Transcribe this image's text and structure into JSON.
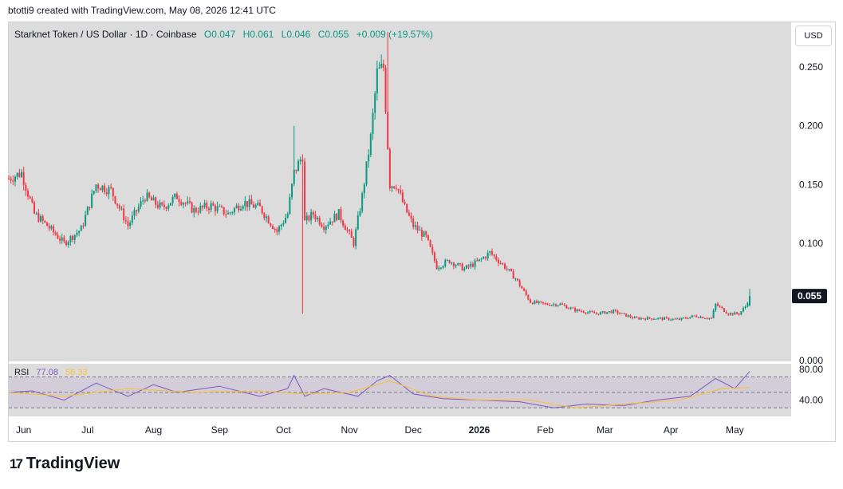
{
  "header": {
    "created": "btotti9 created with TradingView.com, May 08, 2026 12:41 UTC"
  },
  "legend": {
    "symbol": "Starknet Token / US Dollar · 1D · Coinbase",
    "open": "O0.047",
    "high": "H0.061",
    "low": "L0.046",
    "close": "C0.055",
    "change": "+0.009 (+19.57%)"
  },
  "currency": "USD",
  "rsi": {
    "name": "RSI",
    "value": "77.08",
    "ma": "56.33"
  },
  "brand": {
    "logo": "17",
    "name": "TradingView"
  },
  "colors": {
    "up": "#089981",
    "down": "#f23645",
    "rsi": "#7e57c2",
    "rsi_ma": "#fbc02d",
    "bg": "#dcdcdc",
    "rsi_band": "#d2cdd9",
    "price_tag": "#131722"
  },
  "chart_data": [
    {
      "type": "candlestick",
      "title": "Starknet Token / US Dollar · 1D · Coinbase",
      "x_ticks": [
        "Jun",
        "Jul",
        "Aug",
        "Sep",
        "Oct",
        "Nov",
        "Dec",
        "2026",
        "Feb",
        "Mar",
        "Apr",
        "May"
      ],
      "y_ticks": [
        "0.000",
        "0.100",
        "0.150",
        "0.200",
        "0.250"
      ],
      "ylim": [
        0,
        0.28
      ],
      "last_price": "0.055",
      "grid": false,
      "close_anchors": {
        "dates": [
          "2025-05-25",
          "2025-05-31",
          "2025-06-06",
          "2025-06-12",
          "2025-06-20",
          "2025-06-28",
          "2025-07-05",
          "2025-07-12",
          "2025-07-20",
          "2025-07-28",
          "2025-08-05",
          "2025-08-12",
          "2025-08-20",
          "2025-08-28",
          "2025-09-05",
          "2025-09-12",
          "2025-09-20",
          "2025-09-28",
          "2025-10-03",
          "2025-10-06",
          "2025-10-10",
          "2025-10-11",
          "2025-10-15",
          "2025-10-20",
          "2025-10-27",
          "2025-11-03",
          "2025-11-07",
          "2025-11-11",
          "2025-11-14",
          "2025-11-17",
          "2025-11-20",
          "2025-11-23",
          "2025-11-27",
          "2025-12-01",
          "2025-12-07",
          "2025-12-12",
          "2025-12-18",
          "2025-12-25",
          "2026-01-01",
          "2026-01-06",
          "2026-01-13",
          "2026-01-18",
          "2026-01-25",
          "2026-02-01",
          "2026-02-08",
          "2026-02-15",
          "2026-02-25",
          "2026-03-05",
          "2026-03-15",
          "2026-03-25",
          "2026-04-05",
          "2026-04-12",
          "2026-04-20",
          "2026-04-22",
          "2026-04-28",
          "2026-05-03",
          "2026-05-06",
          "2026-05-08"
        ],
        "close": [
          0.155,
          0.16,
          0.125,
          0.115,
          0.1,
          0.112,
          0.15,
          0.145,
          0.115,
          0.14,
          0.13,
          0.14,
          0.128,
          0.132,
          0.125,
          0.135,
          0.13,
          0.11,
          0.125,
          0.16,
          0.175,
          0.118,
          0.125,
          0.115,
          0.125,
          0.1,
          0.14,
          0.19,
          0.245,
          0.25,
          0.15,
          0.15,
          0.13,
          0.115,
          0.105,
          0.08,
          0.085,
          0.078,
          0.085,
          0.092,
          0.08,
          0.07,
          0.05,
          0.048,
          0.048,
          0.043,
          0.04,
          0.042,
          0.036,
          0.036,
          0.035,
          0.038,
          0.036,
          0.048,
          0.04,
          0.04,
          0.046,
          0.055
        ]
      }
    },
    {
      "type": "line",
      "title": "RSI",
      "y_ticks": [
        "40.00",
        "80.00"
      ],
      "bands": [
        30,
        50,
        70
      ],
      "ylim": [
        20,
        85
      ],
      "series": [
        {
          "name": "77.08",
          "x": [
            "2025-05-25",
            "2025-06-05",
            "2025-06-20",
            "2025-07-05",
            "2025-07-20",
            "2025-08-01",
            "2025-08-12",
            "2025-09-01",
            "2025-09-20",
            "2025-10-03",
            "2025-10-06",
            "2025-10-11",
            "2025-10-20",
            "2025-11-05",
            "2025-11-14",
            "2025-11-20",
            "2025-12-01",
            "2025-12-15",
            "2026-01-01",
            "2026-01-20",
            "2026-02-05",
            "2026-02-20",
            "2026-03-10",
            "2026-03-25",
            "2026-04-10",
            "2026-04-22",
            "2026-05-01",
            "2026-05-08"
          ],
          "values": [
            50,
            52,
            40,
            62,
            45,
            60,
            50,
            58,
            45,
            55,
            72,
            45,
            55,
            45,
            65,
            72,
            48,
            42,
            40,
            38,
            30,
            35,
            33,
            40,
            45,
            68,
            55,
            77.08
          ]
        },
        {
          "name": "56.33",
          "x": [
            "2025-05-25",
            "2025-06-20",
            "2025-07-20",
            "2025-08-20",
            "2025-09-20",
            "2025-10-11",
            "2025-11-01",
            "2025-11-20",
            "2025-12-10",
            "2026-01-01",
            "2026-01-25",
            "2026-02-15",
            "2026-03-10",
            "2026-04-05",
            "2026-04-25",
            "2026-05-08"
          ],
          "values": [
            50,
            45,
            55,
            50,
            52,
            48,
            50,
            65,
            45,
            40,
            40,
            30,
            35,
            40,
            55,
            56.33
          ]
        }
      ]
    }
  ]
}
